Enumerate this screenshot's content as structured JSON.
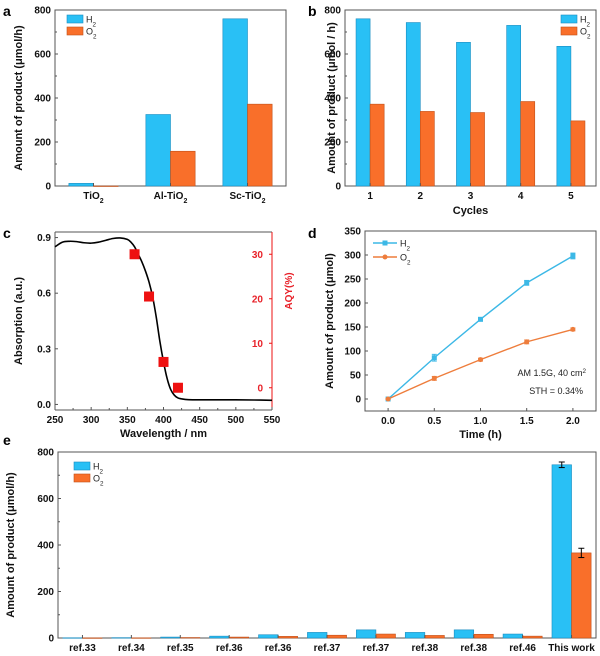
{
  "colors": {
    "h2": "#29c0f5",
    "o2": "#f96f2a",
    "h2_line": "#3cb8e6",
    "o2_line": "#ee7d3c",
    "aqy": "#ee1111",
    "absorption": "#000000",
    "axis": "#555555"
  },
  "chart_data": [
    {
      "id": "a",
      "panel_letter": "a",
      "type": "bar",
      "categories": [
        "TiO₂",
        "Al-TiO₂",
        "Sc-TiO₂"
      ],
      "series": [
        {
          "name": "H₂",
          "values": [
            12,
            325,
            760
          ]
        },
        {
          "name": "O₂",
          "values": [
            0,
            158,
            372
          ]
        }
      ],
      "xlabel": "",
      "ylabel": "Amount of product (μmol/h)",
      "ylim": [
        0,
        800
      ],
      "yticks": [
        0,
        200,
        400,
        600,
        800
      ],
      "legend": "top-left"
    },
    {
      "id": "b",
      "panel_letter": "b",
      "type": "bar",
      "categories": [
        "1",
        "2",
        "3",
        "4",
        "5"
      ],
      "series": [
        {
          "name": "H₂",
          "values": [
            760,
            743,
            653,
            730,
            635
          ]
        },
        {
          "name": "O₂",
          "values": [
            372,
            339,
            334,
            384,
            296
          ]
        }
      ],
      "xlabel": "Cycles",
      "ylabel": "Amount of product (μmol / h)",
      "ylim": [
        0,
        800
      ],
      "yticks": [
        0,
        200,
        400,
        600,
        800
      ],
      "legend": "top-right"
    },
    {
      "id": "c",
      "panel_letter": "c",
      "type": "line",
      "xlabel": "Wavelength / nm",
      "ylabel": "Absorption (a.u.)",
      "y2label": "AQY(%)",
      "xlim": [
        250,
        550
      ],
      "ylim": [
        -0.03,
        0.93
      ],
      "y2lim": [
        -5,
        35
      ],
      "xticks": [
        250,
        300,
        350,
        400,
        450,
        500,
        550
      ],
      "yticks": [
        0.0,
        0.3,
        0.6,
        0.9
      ],
      "ytick_labels": [
        "0.0",
        "0.3",
        "0.6",
        "0.9"
      ],
      "y2ticks": [
        0,
        10,
        20,
        30
      ],
      "absorption": {
        "x": [
          250,
          260,
          270,
          280,
          290,
          300,
          310,
          320,
          330,
          340,
          350,
          355,
          360,
          365,
          370,
          375,
          380,
          385,
          390,
          395,
          400,
          405,
          410,
          415,
          420,
          425,
          430,
          440,
          450,
          475,
          500,
          525,
          550
        ],
        "y": [
          0.85,
          0.875,
          0.88,
          0.878,
          0.872,
          0.87,
          0.875,
          0.885,
          0.895,
          0.898,
          0.89,
          0.875,
          0.85,
          0.81,
          0.77,
          0.72,
          0.66,
          0.58,
          0.47,
          0.34,
          0.23,
          0.14,
          0.08,
          0.05,
          0.035,
          0.03,
          0.027,
          0.025,
          0.025,
          0.025,
          0.025,
          0.024,
          0.022
        ]
      },
      "aqy": {
        "x": [
          360,
          380,
          400,
          420
        ],
        "y": [
          30.0,
          20.5,
          5.8,
          0.0
        ],
        "xerr": [
          2,
          5,
          5,
          5
        ]
      }
    },
    {
      "id": "d",
      "panel_letter": "d",
      "type": "line",
      "xlabel": "Time (h)",
      "ylabel": "Amount of product (μmol)",
      "xlim": [
        -0.25,
        2.25
      ],
      "ylim": [
        -25,
        350
      ],
      "xticks": [
        0.0,
        0.5,
        1.0,
        1.5,
        2.0
      ],
      "xtick_labels": [
        "0.0",
        "0.5",
        "1.0",
        "1.5",
        "2.0"
      ],
      "yticks": [
        0,
        50,
        100,
        150,
        200,
        250,
        300,
        350
      ],
      "series": [
        {
          "name": "H₂",
          "x": [
            0,
            0.5,
            1.0,
            1.5,
            2.0
          ],
          "values": [
            0,
            86,
            166,
            242,
            298
          ],
          "err": [
            1,
            7,
            3,
            5,
            6
          ]
        },
        {
          "name": "O₂",
          "x": [
            0,
            0.5,
            1.0,
            1.5,
            2.0
          ],
          "values": [
            0,
            43,
            82,
            119,
            145
          ],
          "err": [
            1,
            4,
            3,
            4,
            3
          ]
        }
      ],
      "annotations": [
        "AM 1.5G, 40 cm²",
        "STH = 0.34%"
      ],
      "legend": "top-left"
    },
    {
      "id": "e",
      "panel_letter": "e",
      "type": "bar",
      "categories": [
        "ref.33",
        "ref.34",
        "ref.35",
        "ref.36",
        "ref.36",
        "ref.37",
        "ref.37",
        "ref.38",
        "ref.38",
        "ref.46",
        "This work"
      ],
      "series": [
        {
          "name": "H₂",
          "values": [
            1,
            1.5,
            4,
            8,
            14,
            24,
            35,
            24,
            35,
            17,
            745
          ],
          "err_last": 12
        },
        {
          "name": "O₂",
          "values": [
            0.5,
            0.7,
            2,
            4,
            7,
            12,
            17,
            11,
            16,
            8,
            366
          ],
          "err_last": 20
        }
      ],
      "xlabel": "",
      "ylabel": "Amount of product (μmol/h)",
      "ylim": [
        0,
        800
      ],
      "yticks": [
        0,
        200,
        400,
        600,
        800
      ],
      "legend": "top-left"
    }
  ]
}
